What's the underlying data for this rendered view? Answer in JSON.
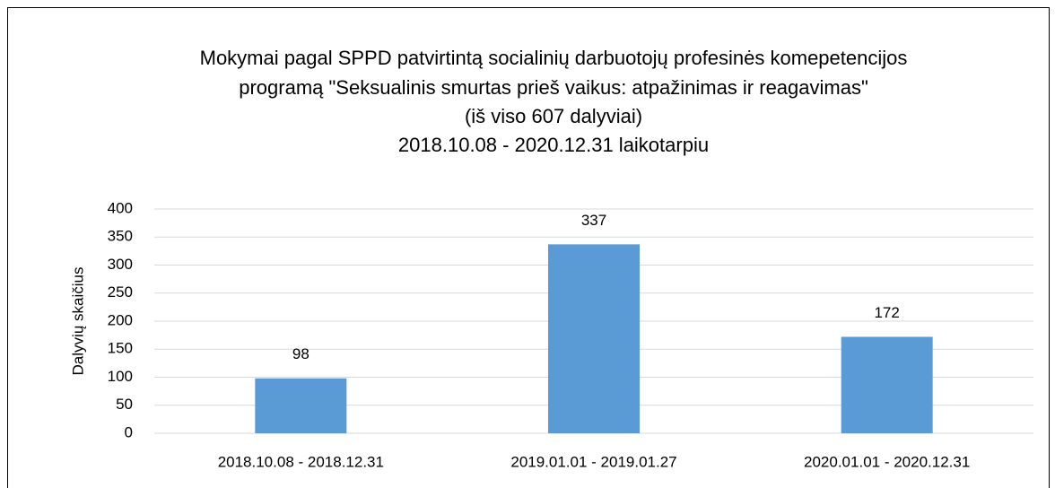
{
  "chart_data": {
    "type": "bar",
    "title": [
      "Mokymai pagal SPPD patvirtintą socialinių darbuotojų profesinės komepetencijos",
      "programą \"Seksualinis smurtas prieš vaikus: atpažinimas ir reagavimas\"",
      "(iš viso 607 dalyviai)",
      "2018.10.08 - 2020.12.31 laikotarpiu"
    ],
    "y_label": "Dalyvių skaičius",
    "categories": [
      "2018.10.08 - 2018.12.31",
      "2019.01.01 - 2019.01.27",
      "2020.01.01 - 2020.12.31"
    ],
    "values": [
      98,
      337,
      172
    ],
    "color": "#5b9bd5",
    "ylim": [
      0,
      400
    ],
    "yticks": [
      0,
      50,
      100,
      150,
      200,
      250,
      300,
      350,
      400
    ],
    "grid": true
  }
}
